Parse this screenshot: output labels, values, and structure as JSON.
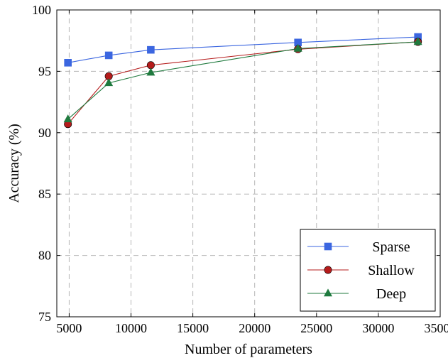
{
  "chart_data": {
    "type": "line",
    "xlabel": "Number of parameters",
    "ylabel": "Accuracy (%)",
    "xlim": [
      4000,
      35000
    ],
    "ylim": [
      75,
      100
    ],
    "xticks": [
      5000,
      10000,
      15000,
      20000,
      25000,
      30000,
      35000
    ],
    "yticks": [
      75,
      80,
      85,
      90,
      95,
      100
    ],
    "grid": true,
    "legend_position": "bottom-right",
    "series": [
      {
        "name": "Sparse",
        "color": "#3b66e0",
        "marker": "square",
        "x": [
          4900,
          8200,
          11600,
          23500,
          33200
        ],
        "y": [
          95.7,
          96.3,
          96.75,
          97.35,
          97.8
        ]
      },
      {
        "name": "Shallow",
        "color": "#b51b1b",
        "marker": "circle",
        "x": [
          4900,
          8200,
          11600,
          23500,
          33200
        ],
        "y": [
          90.7,
          94.6,
          95.5,
          96.8,
          97.4
        ]
      },
      {
        "name": "Deep",
        "color": "#1f7a3e",
        "marker": "triangle",
        "x": [
          4900,
          8200,
          11600,
          23500,
          33200
        ],
        "y": [
          91.1,
          94.05,
          94.9,
          96.85,
          97.4
        ]
      }
    ]
  }
}
